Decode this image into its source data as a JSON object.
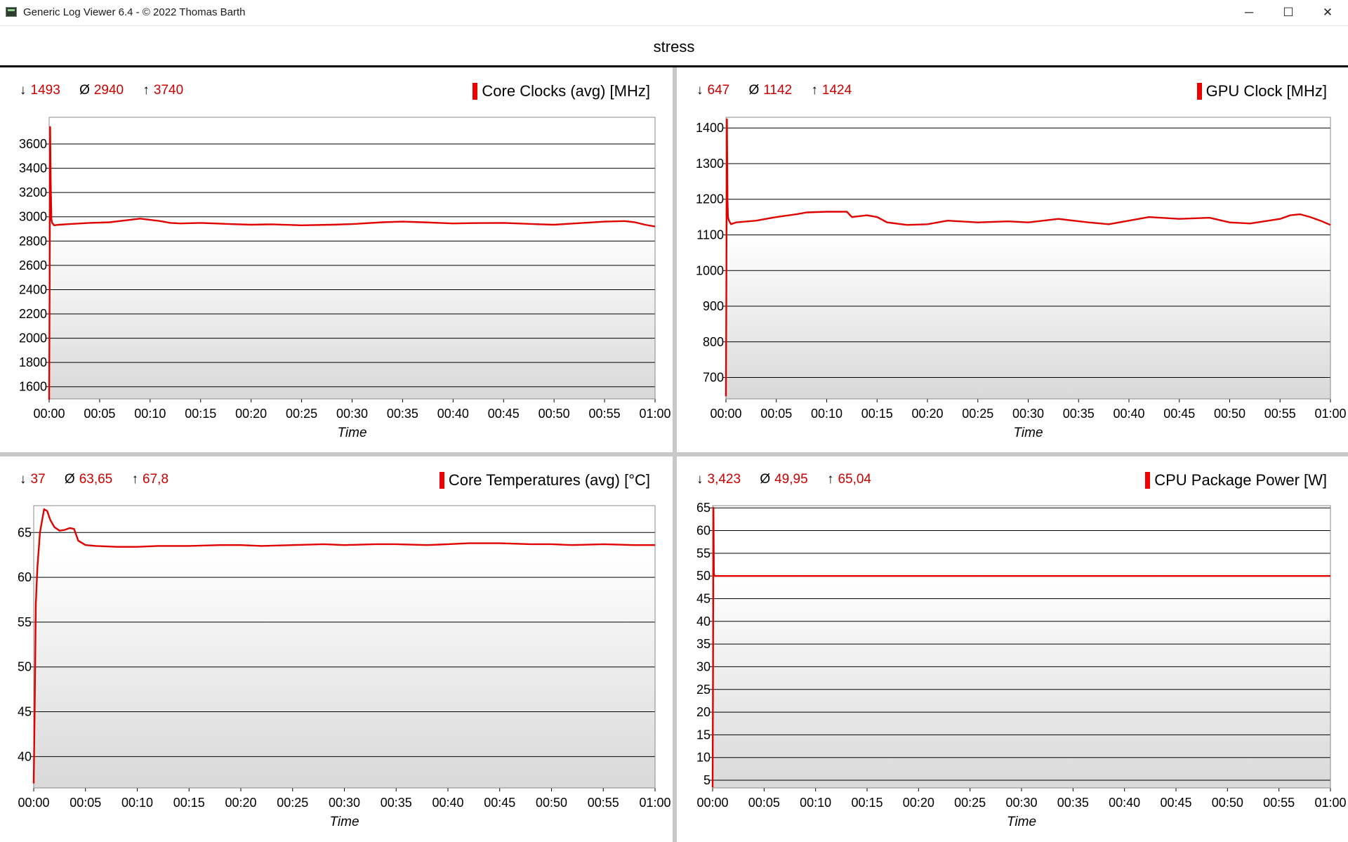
{
  "window": {
    "title": "Generic Log Viewer 6.4 - © 2022 Thomas Barth",
    "minimize_glyph": "─",
    "maximize_glyph": "☐",
    "close_glyph": "✕"
  },
  "header": {
    "title": "stress"
  },
  "colors": {
    "series": "#e00000",
    "stats": "#cc0000",
    "plot_top": "#ffffff",
    "plot_bottom": "#d9d9d9"
  },
  "charts": [
    {
      "id": "core-clocks",
      "stats": {
        "min_arrow": "↓",
        "min": "1493",
        "avg_symbol": "Ø",
        "avg": "2940",
        "max_arrow": "↑",
        "max": "3740"
      },
      "chart_data": {
        "type": "line",
        "title": "Core Clocks (avg) [MHz]",
        "xlabel": "Time",
        "ylabel": "",
        "x_ticks": [
          "00:00",
          "00:05",
          "00:10",
          "00:15",
          "00:20",
          "00:25",
          "00:30",
          "00:35",
          "00:40",
          "00:45",
          "00:50",
          "00:55",
          "01:00"
        ],
        "y_ticks": [
          1600,
          1800,
          2000,
          2200,
          2400,
          2600,
          2800,
          3000,
          3200,
          3400,
          3600
        ],
        "xlim": [
          0,
          60
        ],
        "ylim": [
          1500,
          3820
        ],
        "grid": true,
        "shade_from": 2900,
        "series": [
          {
            "name": "Core Clocks (avg) [MHz]",
            "x": [
              0,
              0.05,
              0.1,
              0.15,
              0.22,
              0.3,
              0.5,
              1,
              2,
              4,
              6,
              8,
              9,
              10,
              11,
              12,
              13,
              15,
              18,
              20,
              22,
              25,
              28,
              30,
              33,
              35,
              37,
              40,
              42,
              45,
              48,
              50,
              52,
              55,
              57,
              58,
              59,
              60
            ],
            "y": [
              1493,
              2400,
              3740,
              3300,
              2980,
              2950,
              2930,
              2935,
              2940,
              2950,
              2955,
              2975,
              2985,
              2975,
              2965,
              2950,
              2945,
              2950,
              2940,
              2935,
              2938,
              2930,
              2935,
              2940,
              2955,
              2960,
              2955,
              2945,
              2948,
              2950,
              2940,
              2935,
              2945,
              2960,
              2965,
              2955,
              2935,
              2920
            ]
          }
        ]
      }
    },
    {
      "id": "gpu-clock",
      "stats": {
        "min_arrow": "↓",
        "min": "647",
        "avg_symbol": "Ø",
        "avg": "1142",
        "max_arrow": "↑",
        "max": "1424"
      },
      "chart_data": {
        "type": "line",
        "title": "GPU Clock [MHz]",
        "xlabel": "Time",
        "ylabel": "",
        "x_ticks": [
          "00:00",
          "00:05",
          "00:10",
          "00:15",
          "00:20",
          "00:25",
          "00:30",
          "00:35",
          "00:40",
          "00:45",
          "00:50",
          "00:55",
          "01:00"
        ],
        "y_ticks": [
          700,
          800,
          900,
          1000,
          1100,
          1200,
          1300,
          1400
        ],
        "xlim": [
          0,
          60
        ],
        "ylim": [
          640,
          1430
        ],
        "grid": true,
        "shade_from": 1100,
        "series": [
          {
            "name": "GPU Clock [MHz]",
            "x": [
              0,
              0.05,
              0.1,
              0.15,
              0.2,
              0.3,
              0.5,
              1,
              3,
              5,
              7,
              8,
              10,
              12,
              12.5,
              14,
              15,
              16,
              18,
              20,
              22,
              25,
              28,
              30,
              33,
              36,
              38,
              40,
              42,
              45,
              48,
              50,
              52,
              55,
              56,
              57,
              58,
              59,
              60
            ],
            "y": [
              647,
              1020,
              1424,
              1200,
              1150,
              1140,
              1130,
              1135,
              1140,
              1150,
              1158,
              1163,
              1165,
              1165,
              1150,
              1155,
              1150,
              1135,
              1128,
              1130,
              1140,
              1135,
              1138,
              1135,
              1145,
              1135,
              1130,
              1140,
              1150,
              1145,
              1148,
              1135,
              1132,
              1145,
              1155,
              1158,
              1150,
              1140,
              1128
            ]
          }
        ]
      }
    },
    {
      "id": "core-temps",
      "stats": {
        "min_arrow": "↓",
        "min": "37",
        "avg_symbol": "Ø",
        "avg": "63,65",
        "max_arrow": "↑",
        "max": "67,8"
      },
      "chart_data": {
        "type": "line",
        "title": "Core Temperatures (avg) [°C]",
        "xlabel": "Time",
        "ylabel": "",
        "x_ticks": [
          "00:00",
          "00:05",
          "00:10",
          "00:15",
          "00:20",
          "00:25",
          "00:30",
          "00:35",
          "00:40",
          "00:45",
          "00:50",
          "00:55",
          "01:00"
        ],
        "y_ticks": [
          40,
          45,
          50,
          55,
          60,
          65
        ],
        "xlim": [
          0,
          60
        ],
        "ylim": [
          36.5,
          68
        ],
        "grid": true,
        "shade_from": 63,
        "series": [
          {
            "name": "Core Temperatures (avg) [°C]",
            "x": [
              0,
              0.1,
              0.2,
              0.35,
              0.6,
              1,
              1.3,
              1.6,
              2,
              2.5,
              3,
              3.5,
              3.9,
              4.3,
              5,
              6,
              8,
              10,
              12,
              15,
              18,
              20,
              22,
              25,
              28,
              30,
              33,
              35,
              38,
              40,
              42,
              45,
              48,
              50,
              52,
              55,
              58,
              60
            ],
            "y": [
              37,
              46,
              57,
              61,
              65,
              67.6,
              67.4,
              66.4,
              65.6,
              65.2,
              65.3,
              65.5,
              65.4,
              64.1,
              63.6,
              63.5,
              63.4,
              63.4,
              63.5,
              63.5,
              63.6,
              63.6,
              63.5,
              63.6,
              63.7,
              63.6,
              63.7,
              63.7,
              63.6,
              63.7,
              63.8,
              63.8,
              63.7,
              63.7,
              63.6,
              63.7,
              63.6,
              63.6
            ]
          }
        ]
      }
    },
    {
      "id": "cpu-power",
      "stats": {
        "min_arrow": "↓",
        "min": "3,423",
        "avg_symbol": "Ø",
        "avg": "49,95",
        "max_arrow": "↑",
        "max": "65,04"
      },
      "chart_data": {
        "type": "line",
        "title": "CPU Package Power [W]",
        "xlabel": "Time",
        "ylabel": "",
        "x_ticks": [
          "00:00",
          "00:05",
          "00:10",
          "00:15",
          "00:20",
          "00:25",
          "00:30",
          "00:35",
          "00:40",
          "00:45",
          "00:50",
          "00:55",
          "01:00"
        ],
        "y_ticks": [
          5,
          10,
          15,
          20,
          25,
          30,
          35,
          40,
          45,
          50,
          55,
          60,
          65
        ],
        "xlim": [
          0,
          60
        ],
        "ylim": [
          3.3,
          65.5
        ],
        "grid": true,
        "shade_from": 50,
        "series": [
          {
            "name": "CPU Package Power [W]",
            "x": [
              0,
              0.04,
              0.08,
              0.12,
              0.2,
              0.5,
              5,
              10,
              20,
              30,
              40,
              50,
              60
            ],
            "y": [
              3.423,
              30,
              65.04,
              50.5,
              50,
              50,
              50,
              50,
              50,
              50,
              50,
              50,
              50
            ]
          }
        ]
      }
    }
  ]
}
